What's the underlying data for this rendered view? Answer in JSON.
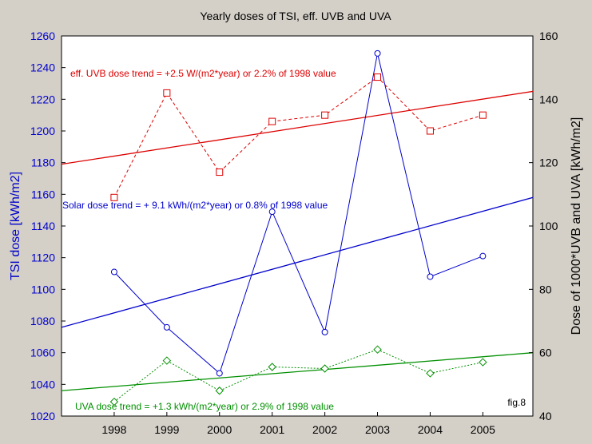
{
  "chart_data": {
    "type": "line",
    "title": "Yearly doses of TSI, eff. UVB and UVA",
    "left_axis": {
      "label": "TSI dose [kWh/m2]",
      "ylim": [
        1020,
        1260
      ],
      "ticks": [
        "1020",
        "1040",
        "1060",
        "1080",
        "1100",
        "1120",
        "1140",
        "1160",
        "1180",
        "1200",
        "1220",
        "1240",
        "1260"
      ],
      "color": "#0000cc"
    },
    "right_axis": {
      "label": "Dose of 1000*UVB and UVA [kWh/m2]",
      "ylim": [
        40,
        160
      ],
      "ticks": [
        "40",
        "60",
        "80",
        "100",
        "120",
        "140",
        "160"
      ],
      "color": "#000000"
    },
    "x_axis": {
      "xlim": [
        1997,
        2005.95
      ],
      "ticks": [
        "1998",
        "1999",
        "2000",
        "2001",
        "2002",
        "2003",
        "2004",
        "2005"
      ]
    },
    "series": [
      {
        "key": "tsi",
        "axis": "left",
        "color": "#0000cc",
        "style": "solid",
        "marker": "circle",
        "x": [
          1998,
          1999,
          2000,
          2001,
          2002,
          2003,
          2004,
          2005
        ],
        "values": [
          1111,
          1076,
          1047,
          1149,
          1073,
          1249,
          1108,
          1121
        ],
        "trend": [
          [
            1997,
            1076
          ],
          [
            2005.95,
            1158
          ]
        ]
      },
      {
        "key": "uvb",
        "axis": "right",
        "color": "#dd0000",
        "style": "dashed",
        "marker": "square",
        "x": [
          1998,
          1999,
          2000,
          2001,
          2002,
          2003,
          2004,
          2005
        ],
        "values": [
          109,
          142,
          117,
          133,
          135,
          147,
          130,
          135
        ],
        "trend": [
          [
            1997,
            119.5
          ],
          [
            2005.95,
            142.5
          ]
        ]
      },
      {
        "key": "uva",
        "axis": "right",
        "color": "#009000",
        "style": "dotted",
        "marker": "diamond",
        "x": [
          1998,
          1999,
          2000,
          2001,
          2002,
          2003,
          2004,
          2005
        ],
        "values": [
          44.5,
          57.5,
          48,
          55.5,
          55,
          61,
          53.5,
          57
        ],
        "trend": [
          [
            1997,
            48
          ],
          [
            2005.95,
            60
          ]
        ]
      }
    ],
    "annotations": [
      {
        "key": "uvb",
        "text": "eff. UVB dose trend = +2.5 W/(m2*year) or 2.2% of 1998 value",
        "color": "#dd0000"
      },
      {
        "key": "tsi",
        "text": "Solar dose trend = + 9.1 kWh/(m2*year) or 0.8% of 1998 value",
        "color": "#0000cc"
      },
      {
        "key": "uva",
        "text": "UVA dose trend = +1.3 kWh/(m2*year) or 2.9% of 1998 value",
        "color": "#009000"
      },
      {
        "key": "fig",
        "text": "fig.8",
        "color": "#000000"
      }
    ],
    "grid": false,
    "plot_background": "#ffffff"
  }
}
